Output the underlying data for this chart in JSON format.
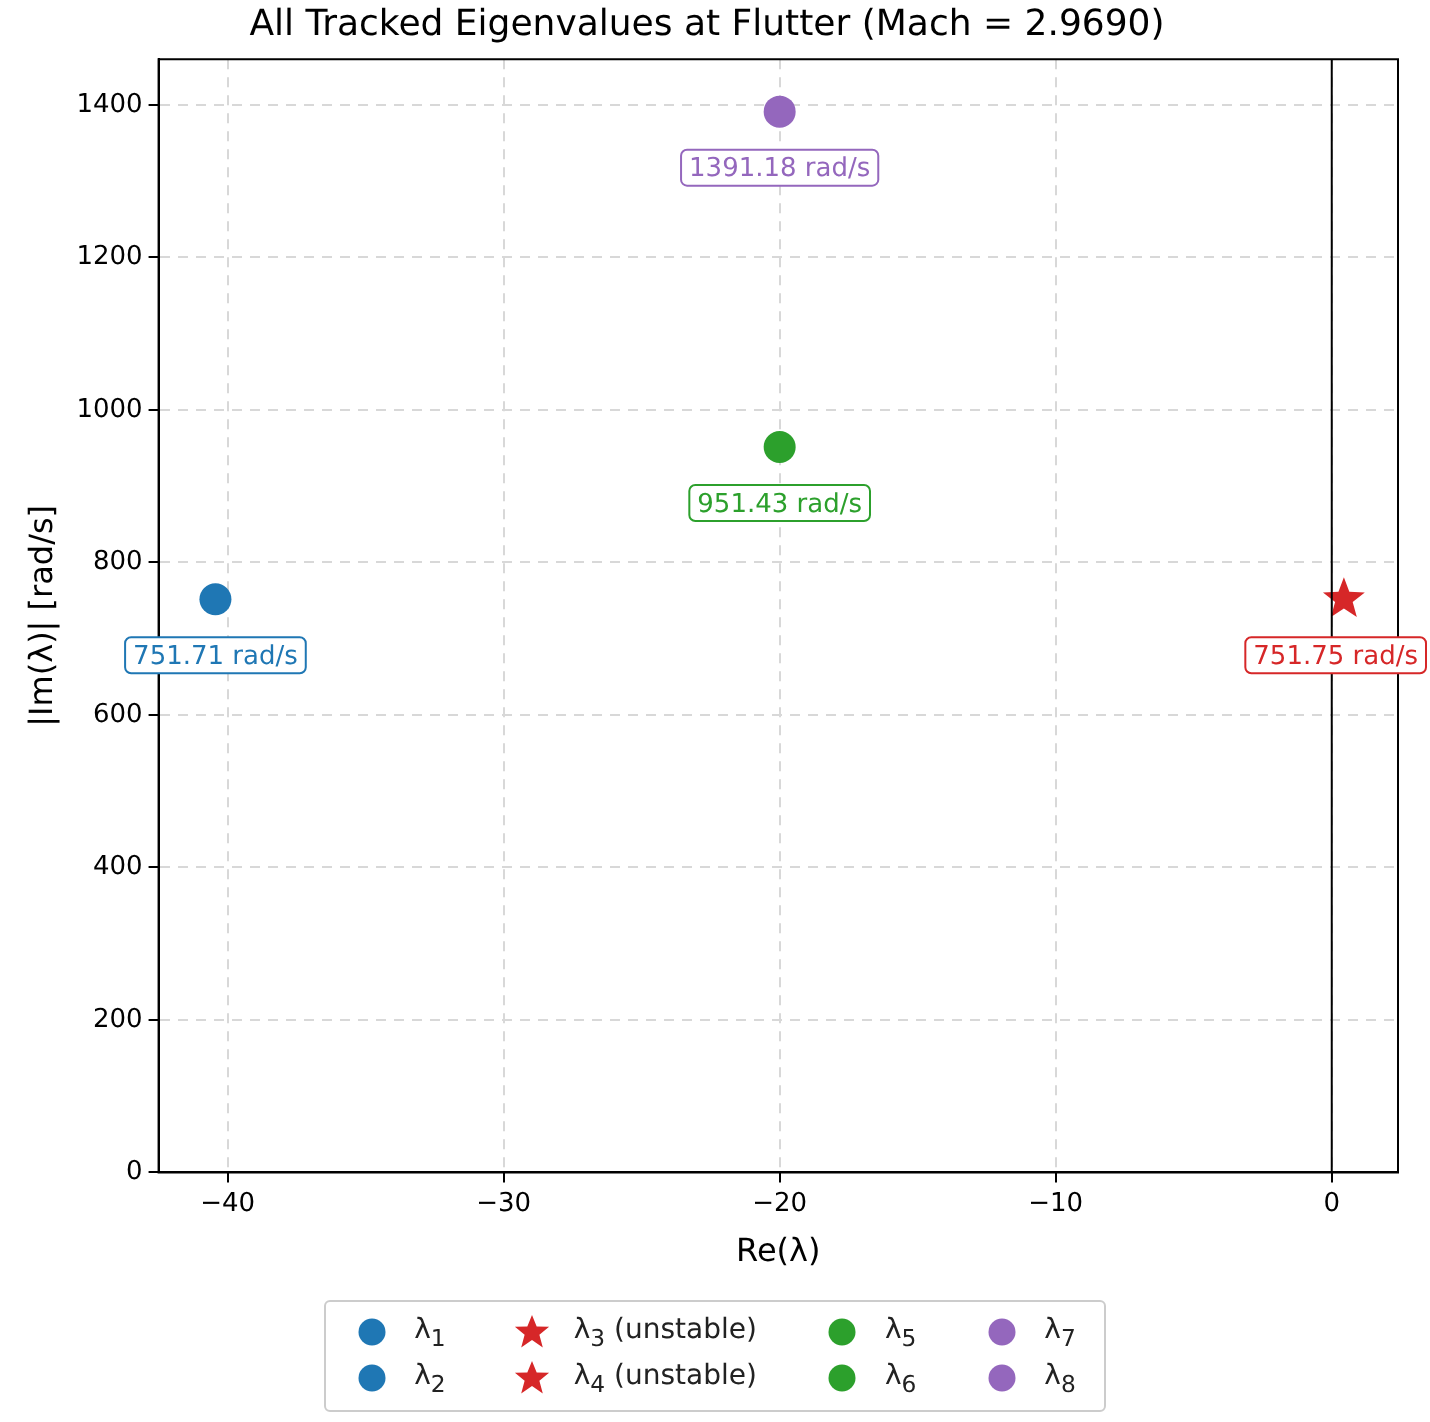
{
  "chart_data": {
    "type": "scatter",
    "title": "All Tracked Eigenvalues at Flutter (Mach = 2.9690)",
    "xlabel": "Re(λ)",
    "ylabel": "|Im(λ)| [rad/s]",
    "xlim": [
      -42.5,
      2.4
    ],
    "xticks": [
      -40,
      -30,
      -20,
      -10,
      0
    ],
    "ylim": [
      0,
      1460
    ],
    "yticks": [
      0,
      200,
      400,
      600,
      800,
      1000,
      1200,
      1400
    ],
    "grid": true,
    "legend": "bottom",
    "ref_lines": [
      {
        "axis": "x",
        "value": 0,
        "color": "#000000",
        "line_style": "solid"
      }
    ],
    "series": [
      {
        "name": "λ$_{1}$",
        "color": "#1f77b4",
        "marker": "circle",
        "x": [
          -40.44
        ],
        "values": [
          751.71
        ],
        "value_labels": [
          "751.71 rad/s"
        ]
      },
      {
        "name": "λ$_{2}$",
        "color": "#1f77b4",
        "marker": "circle",
        "x": [
          null
        ],
        "values": [
          null
        ],
        "value_labels": [
          null
        ]
      },
      {
        "name": "λ$_{3}$ (unstable)",
        "color": "#d62728",
        "marker": "star",
        "x": [
          0.44
        ],
        "values": [
          751.75
        ],
        "value_labels": [
          "751.75 rad/s"
        ]
      },
      {
        "name": "λ$_{4}$ (unstable)",
        "color": "#d62728",
        "marker": "star",
        "x": [
          null
        ],
        "values": [
          null
        ],
        "value_labels": [
          null
        ]
      },
      {
        "name": "λ$_{5}$",
        "color": "#2ca02c",
        "marker": "circle",
        "x": [
          -20.0
        ],
        "values": [
          951.43
        ],
        "value_labels": [
          "951.43 rad/s"
        ]
      },
      {
        "name": "λ$_{6}$",
        "color": "#2ca02c",
        "marker": "circle",
        "x": [
          null
        ],
        "values": [
          null
        ],
        "value_labels": [
          null
        ]
      },
      {
        "name": "λ$_{7}$",
        "color": "#9467bd",
        "marker": "circle",
        "x": [
          -20.0
        ],
        "values": [
          1391.18
        ],
        "value_labels": [
          "1391.18 rad/s"
        ]
      },
      {
        "name": "λ$_{8}$",
        "color": "#9467bd",
        "marker": "circle",
        "x": [
          null
        ],
        "values": [
          null
        ],
        "value_labels": [
          null
        ]
      }
    ]
  }
}
